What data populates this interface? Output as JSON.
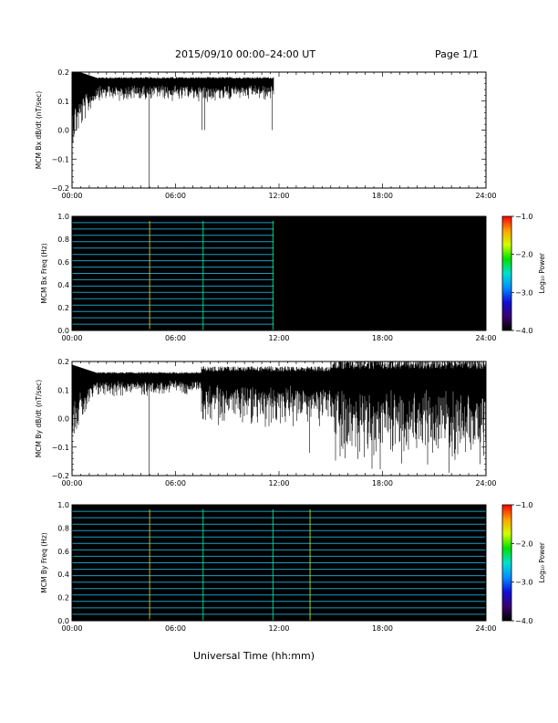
{
  "header": {
    "title": "2015/09/10  00:00–24:00 UT",
    "page": "Page 1/1"
  },
  "footer": {
    "xlabel": "Universal Time (hh:mm)"
  },
  "colorbar": {
    "label": "Log₁₀ Power",
    "ticks": [
      "−1.0",
      "−2.0",
      "−3.0",
      "−4.0"
    ],
    "range": [
      -4.0,
      -1.0
    ],
    "colors": [
      "#000000",
      "#3a0070",
      "#1010d8",
      "#0090ff",
      "#00e0d0",
      "#00e000",
      "#d0ff00",
      "#ffa000",
      "#ff0000"
    ]
  },
  "chart_data": [
    {
      "type": "line",
      "ylabel": "MCM Bx dB/dt (nT/sec)",
      "ylim": [
        -0.2,
        0.2
      ],
      "xlim": [
        0,
        24
      ],
      "xticks": [
        "00:00",
        "06:00",
        "12:00",
        "18:00",
        "24:00"
      ],
      "yticks": [
        "0.2",
        "0.1",
        "0.0",
        "−0.1",
        "−0.2"
      ],
      "data_end_hour": 11.7,
      "baseline": 0.17,
      "spikes": [
        {
          "x": 4.5,
          "y": -0.2
        },
        {
          "x": 7.55,
          "y": 0.0
        },
        {
          "x": 7.7,
          "y": 0.0
        },
        {
          "x": 11.65,
          "y": 0.0
        }
      ]
    },
    {
      "type": "heatmap",
      "ylabel": "MCM Bx Freq (Hz)",
      "ylim": [
        0.0,
        1.0
      ],
      "xlim": [
        0,
        24
      ],
      "xticks": [
        "00:00",
        "06:00",
        "12:00",
        "18:00",
        "24:00"
      ],
      "yticks": [
        "1.0",
        "0.8",
        "0.6",
        "0.4",
        "0.2",
        "0.0"
      ],
      "data_end_hour": 11.7,
      "zlim": [
        -4.0,
        -1.0
      ]
    },
    {
      "type": "line",
      "ylabel": "MCM By dB/dt (nT/sec)",
      "ylim": [
        -0.2,
        0.2
      ],
      "xlim": [
        0,
        24
      ],
      "xticks": [
        "00:00",
        "06:00",
        "12:00",
        "18:00",
        "24:00"
      ],
      "yticks": [
        "0.2",
        "0.1",
        "0.0",
        "−0.1",
        "−0.2"
      ],
      "data_end_hour": 24,
      "baseline": 0.15,
      "spikes": [
        {
          "x": 4.5,
          "y": -0.2
        },
        {
          "x": 7.6,
          "y": 0.0
        },
        {
          "x": 11.7,
          "y": 0.0
        },
        {
          "x": 13.8,
          "y": -0.12
        },
        {
          "x": 21.9,
          "y": -0.19
        },
        {
          "x": 23.7,
          "y": -0.16
        }
      ]
    },
    {
      "type": "heatmap",
      "ylabel": "MCM By Freq (Hz)",
      "ylim": [
        0.0,
        1.0
      ],
      "xlim": [
        0,
        24
      ],
      "xticks": [
        "00:00",
        "06:00",
        "12:00",
        "18:00",
        "24:00"
      ],
      "yticks": [
        "1.0",
        "0.8",
        "0.6",
        "0.4",
        "0.2",
        "0.0"
      ],
      "data_end_hour": 24,
      "zlim": [
        -4.0,
        -1.0
      ]
    }
  ]
}
